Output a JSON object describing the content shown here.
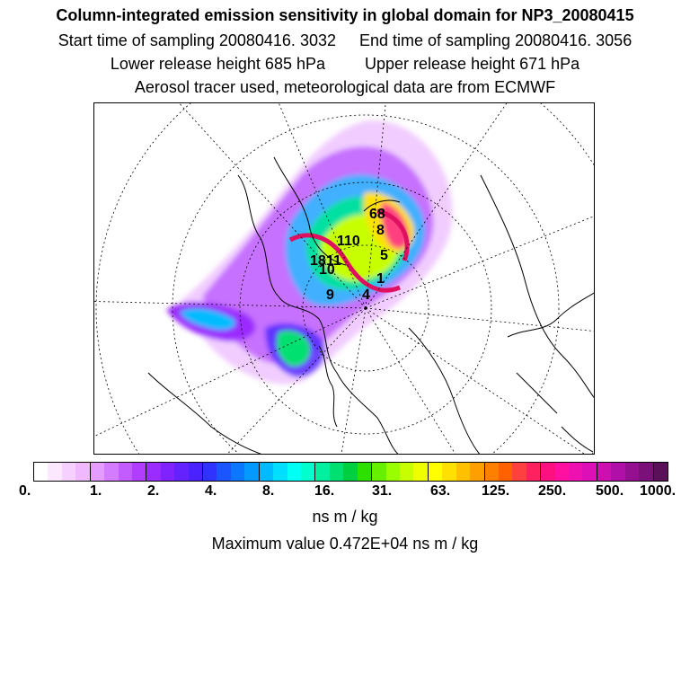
{
  "header": {
    "title": "Column-integrated emission sensitivity in global domain for NP3_20080415",
    "line2_start": "Start time of sampling 20080416.  3032",
    "line2_end": "End time of sampling 20080416.  3056",
    "line3_lower": "Lower release height  685 hPa",
    "line3_upper": "Upper release height  671 hPa",
    "line4": "Aerosol tracer used, meteorological data are from ECMWF"
  },
  "map": {
    "projection": "north-polar-stereographic",
    "labels": [
      "68",
      "8",
      "110",
      "5",
      "18",
      "11",
      "10",
      "1",
      "9",
      "4"
    ]
  },
  "colorbar": {
    "colors": [
      "#ffffff",
      "#fbe8ff",
      "#f6d1ff",
      "#f0b8ff",
      "#e49cff",
      "#d47cff",
      "#c25cff",
      "#b03dff",
      "#9b2cff",
      "#7f22ff",
      "#6422ff",
      "#4a22ff",
      "#3033ff",
      "#1a55ff",
      "#0b77ff",
      "#0499ff",
      "#00bbff",
      "#00dfff",
      "#00fff4",
      "#00ffcc",
      "#00f0a0",
      "#00e070",
      "#00d040",
      "#2ee000",
      "#66f000",
      "#99ff00",
      "#c8ff00",
      "#eeff00",
      "#ffff00",
      "#ffe000",
      "#ffc000",
      "#ffa000",
      "#ff8000",
      "#ff6000",
      "#ff4040",
      "#ff2060",
      "#ff1080",
      "#ff10a0",
      "#ee10b0",
      "#dd10b8",
      "#cc10b0",
      "#b010a8",
      "#951090",
      "#7a1078",
      "#5a1058"
    ],
    "ticks": [
      "0.",
      "1.",
      "2.",
      "4.",
      "8.",
      "16.",
      "31.",
      "63.",
      "125.",
      "250.",
      "500.",
      "1000."
    ]
  },
  "units": "ns m / kg",
  "max_value": "Maximum value  0.472E+04 ns m / kg"
}
